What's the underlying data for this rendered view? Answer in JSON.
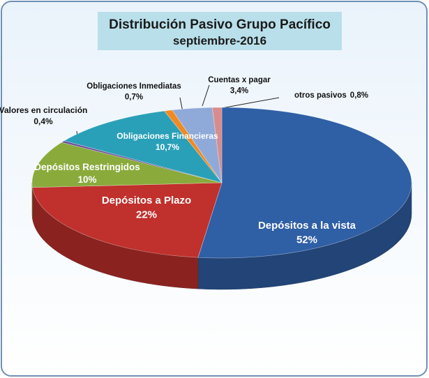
{
  "chart_data": {
    "type": "pie3d",
    "title": "Distribución Pasivo Grupo Pacífico",
    "subtitle": "septiembre-2016",
    "categories": [
      "Depósitos a la vista",
      "Depósitos a Plazo",
      "Depósitos Restringidos",
      "Valores en circulación",
      "Obligaciones Financieras",
      "Obligaciones Inmediatas",
      "Cuentas x pagar",
      "otros pasivos"
    ],
    "values": [
      52,
      22,
      10,
      0.4,
      10.7,
      0.7,
      3.4,
      0.8
    ],
    "value_labels": [
      "52%",
      "22%",
      "10%",
      "0,4%",
      "10,7%",
      "0,7%",
      "3,4%",
      "0,8%"
    ],
    "colors": [
      "#2f5fa5",
      "#c0302c",
      "#8aab3c",
      "#6f4f9c",
      "#2aa0b8",
      "#f08a24",
      "#8faad8",
      "#d98c8c"
    ]
  }
}
